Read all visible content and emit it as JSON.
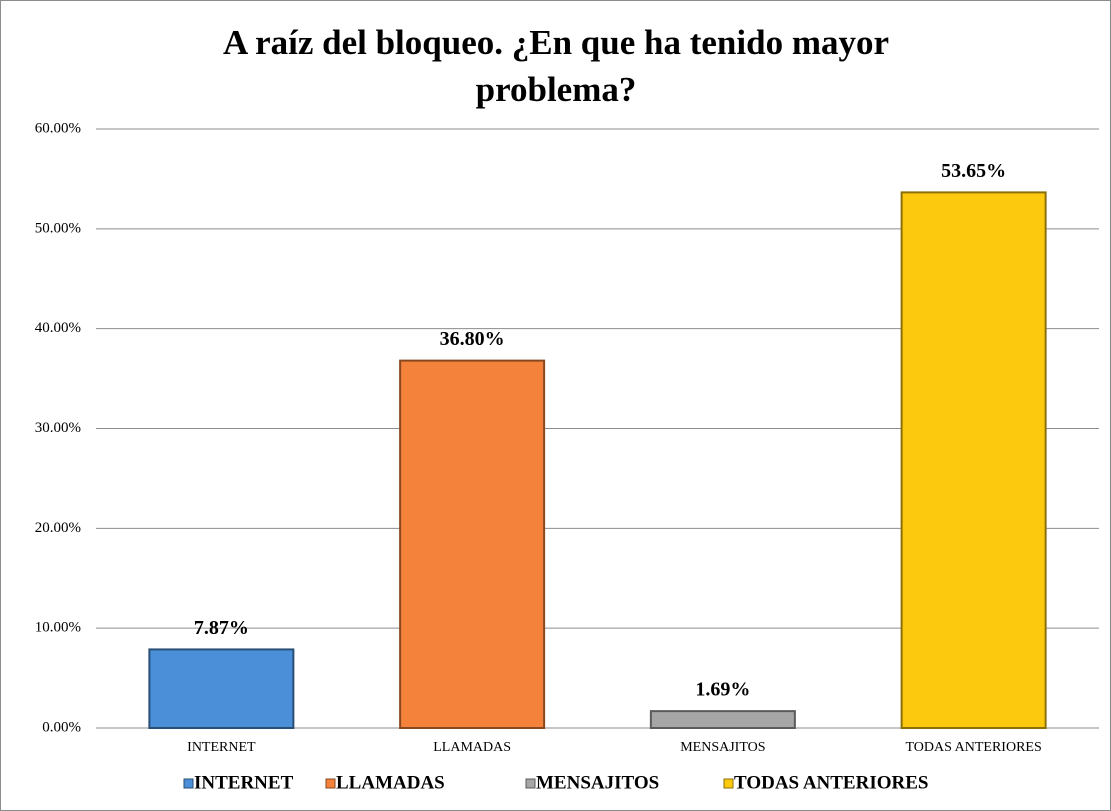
{
  "chart_data": {
    "type": "bar",
    "title": "A raíz del bloqueo. ¿En que ha tenido mayor problema?",
    "categories": [
      "INTERNET",
      "LLAMADAS",
      "MENSAJITOS",
      "TODAS ANTERIORES"
    ],
    "values": [
      7.87,
      36.8,
      1.69,
      53.65
    ],
    "value_labels": [
      "7.87%",
      "36.80%",
      "1.69%",
      "53.65%"
    ],
    "colors": [
      "#4a8fd8",
      "#f5823a",
      "#a6a6a6",
      "#fdc90f"
    ],
    "ylim": [
      0,
      60
    ],
    "yticks": [
      {
        "value": 0,
        "label": "0.00%"
      },
      {
        "value": 10,
        "label": "10.00%"
      },
      {
        "value": 20,
        "label": "20.00%"
      },
      {
        "value": 30,
        "label": "30.00%"
      },
      {
        "value": 40,
        "label": "40.00%"
      },
      {
        "value": 50,
        "label": "50.00%"
      },
      {
        "value": 60,
        "label": "60.00%"
      }
    ],
    "grid": true,
    "legend": "bottom"
  }
}
